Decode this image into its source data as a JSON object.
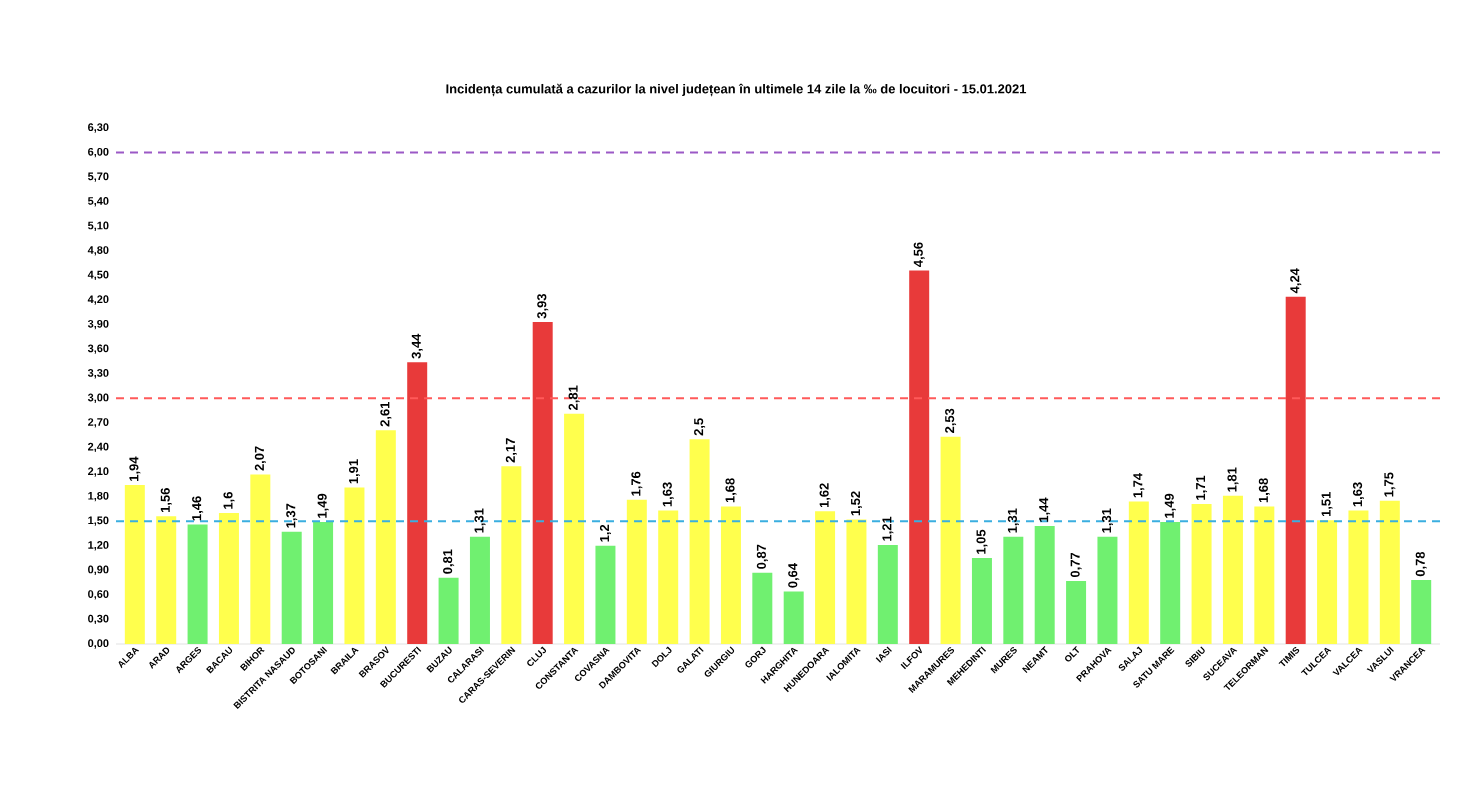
{
  "chart_data": {
    "type": "bar",
    "title": "Incidența cumulată a cazurilor la nivel județean în ultimele 14 zile   la ‰ de locuitori  - 15.01.2021",
    "categories": [
      "ALBA",
      "ARAD",
      "ARGES",
      "BACAU",
      "BIHOR",
      "BISTRITA NASAUD",
      "BOTOSANI",
      "BRAILA",
      "BRASOV",
      "BUCURESTI",
      "BUZAU",
      "CALARASI",
      "CARAS-SEVERIN",
      "CLUJ",
      "CONSTANTA",
      "COVASNA",
      "DAMBOVITA",
      "DOLJ",
      "GALATI",
      "GIURGIU",
      "GORJ",
      "HARGHITA",
      "HUNEDOARA",
      "IALOMITA",
      "IASI",
      "ILFOV",
      "MARAMURES",
      "MEHEDINTI",
      "MURES",
      "NEAMT",
      "OLT",
      "PRAHOVA",
      "SALAJ",
      "SATU MARE",
      "SIBIU",
      "SUCEAVA",
      "TELEORMAN",
      "TIMIS",
      "TULCEA",
      "VALCEA",
      "VASLUI",
      "VRANCEA"
    ],
    "values": [
      1.94,
      1.56,
      1.46,
      1.6,
      2.07,
      1.37,
      1.49,
      1.91,
      2.61,
      3.44,
      0.81,
      1.31,
      2.17,
      3.93,
      2.81,
      1.2,
      1.76,
      1.63,
      2.5,
      1.68,
      0.87,
      0.64,
      1.62,
      1.52,
      1.21,
      4.56,
      2.53,
      1.05,
      1.31,
      1.44,
      0.77,
      1.31,
      1.74,
      1.49,
      1.71,
      1.81,
      1.68,
      4.24,
      1.51,
      1.63,
      1.75,
      0.78
    ],
    "value_labels": [
      "1,94",
      "1,56",
      "1,46",
      "1,6",
      "2,07",
      "1,37",
      "1,49",
      "1,91",
      "2,61",
      "3,44",
      "0,81",
      "1,31",
      "2,17",
      "3,93",
      "2,81",
      "1,2",
      "1,76",
      "1,63",
      "2,5",
      "1,68",
      "0,87",
      "0,64",
      "1,62",
      "1,52",
      "1,21",
      "4,56",
      "2,53",
      "1,05",
      "1,31",
      "1,44",
      "0,77",
      "1,31",
      "1,74",
      "1,49",
      "1,71",
      "1,81",
      "1,68",
      "4,24",
      "1,51",
      "1,63",
      "1,75",
      "0,78"
    ],
    "colors": [
      "#ffff4d",
      "#ffff4d",
      "#70f070",
      "#ffff4d",
      "#ffff4d",
      "#70f070",
      "#70f070",
      "#ffff4d",
      "#ffff4d",
      "#e83a3a",
      "#70f070",
      "#70f070",
      "#ffff4d",
      "#e83a3a",
      "#ffff4d",
      "#70f070",
      "#ffff4d",
      "#ffff4d",
      "#ffff4d",
      "#ffff4d",
      "#70f070",
      "#70f070",
      "#ffff4d",
      "#ffff4d",
      "#70f070",
      "#e83a3a",
      "#ffff4d",
      "#70f070",
      "#70f070",
      "#70f070",
      "#70f070",
      "#70f070",
      "#ffff4d",
      "#70f070",
      "#ffff4d",
      "#ffff4d",
      "#ffff4d",
      "#e83a3a",
      "#ffff4d",
      "#ffff4d",
      "#ffff4d",
      "#70f070"
    ],
    "ylim": [
      0,
      6.3
    ],
    "yticks": [
      {
        "value": 0,
        "label": "0,00"
      },
      {
        "value": 0.3,
        "label": "0,30"
      },
      {
        "value": 0.6,
        "label": "0,60"
      },
      {
        "value": 0.9,
        "label": "0,90"
      },
      {
        "value": 1.2,
        "label": "1,20"
      },
      {
        "value": 1.5,
        "label": "1,50"
      },
      {
        "value": 1.8,
        "label": "1,80"
      },
      {
        "value": 2.1,
        "label": "2,10"
      },
      {
        "value": 2.4,
        "label": "2,40"
      },
      {
        "value": 2.7,
        "label": "2,70"
      },
      {
        "value": 3.0,
        "label": "3,00"
      },
      {
        "value": 3.3,
        "label": "3,30"
      },
      {
        "value": 3.6,
        "label": "3,60"
      },
      {
        "value": 3.9,
        "label": "3,90"
      },
      {
        "value": 4.2,
        "label": "4,20"
      },
      {
        "value": 4.5,
        "label": "4,50"
      },
      {
        "value": 4.8,
        "label": "4,80"
      },
      {
        "value": 5.1,
        "label": "5,10"
      },
      {
        "value": 5.4,
        "label": "5,40"
      },
      {
        "value": 5.7,
        "label": "5,70"
      },
      {
        "value": 6.0,
        "label": "6,00"
      },
      {
        "value": 6.3,
        "label": "6,30"
      }
    ],
    "ref_lines": [
      {
        "axis": "y",
        "value": 6.0,
        "color": "#9b59c6",
        "line_style": "dashed"
      },
      {
        "axis": "y",
        "value": 3.0,
        "color": "#ff5a5a",
        "line_style": "dashed"
      },
      {
        "axis": "y",
        "value": 1.5,
        "color": "#3aaee0",
        "line_style": "dashed"
      }
    ],
    "grid": false
  }
}
